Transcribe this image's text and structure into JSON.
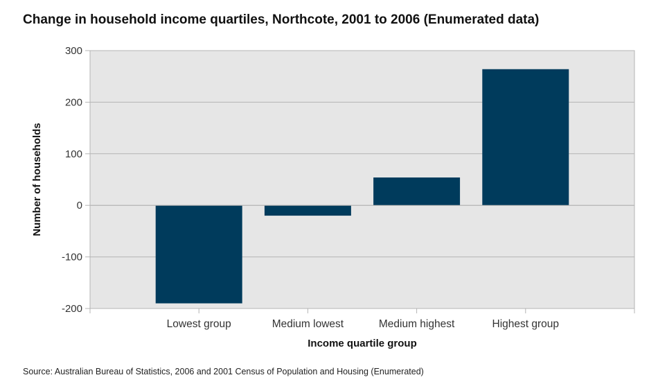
{
  "chart_data": {
    "type": "bar",
    "title": "Change in household income quartiles, Northcote, 2001 to 2006 (Enumerated data)",
    "xlabel": "Income quartile group",
    "ylabel": "Number of households",
    "categories": [
      "Lowest group",
      "Medium lowest",
      "Medium highest",
      "Highest group"
    ],
    "values": [
      -190,
      -20,
      54,
      264
    ],
    "ylim": [
      -200,
      300
    ],
    "yticks": [
      -200,
      -100,
      0,
      100,
      200,
      300
    ],
    "grid": true,
    "legend": "none",
    "bar_color": "#003b5c",
    "plot_background": "#e6e6e6",
    "source": "Source: Australian Bureau of Statistics, 2006 and 2001 Census of Population and Housing (Enumerated)"
  }
}
